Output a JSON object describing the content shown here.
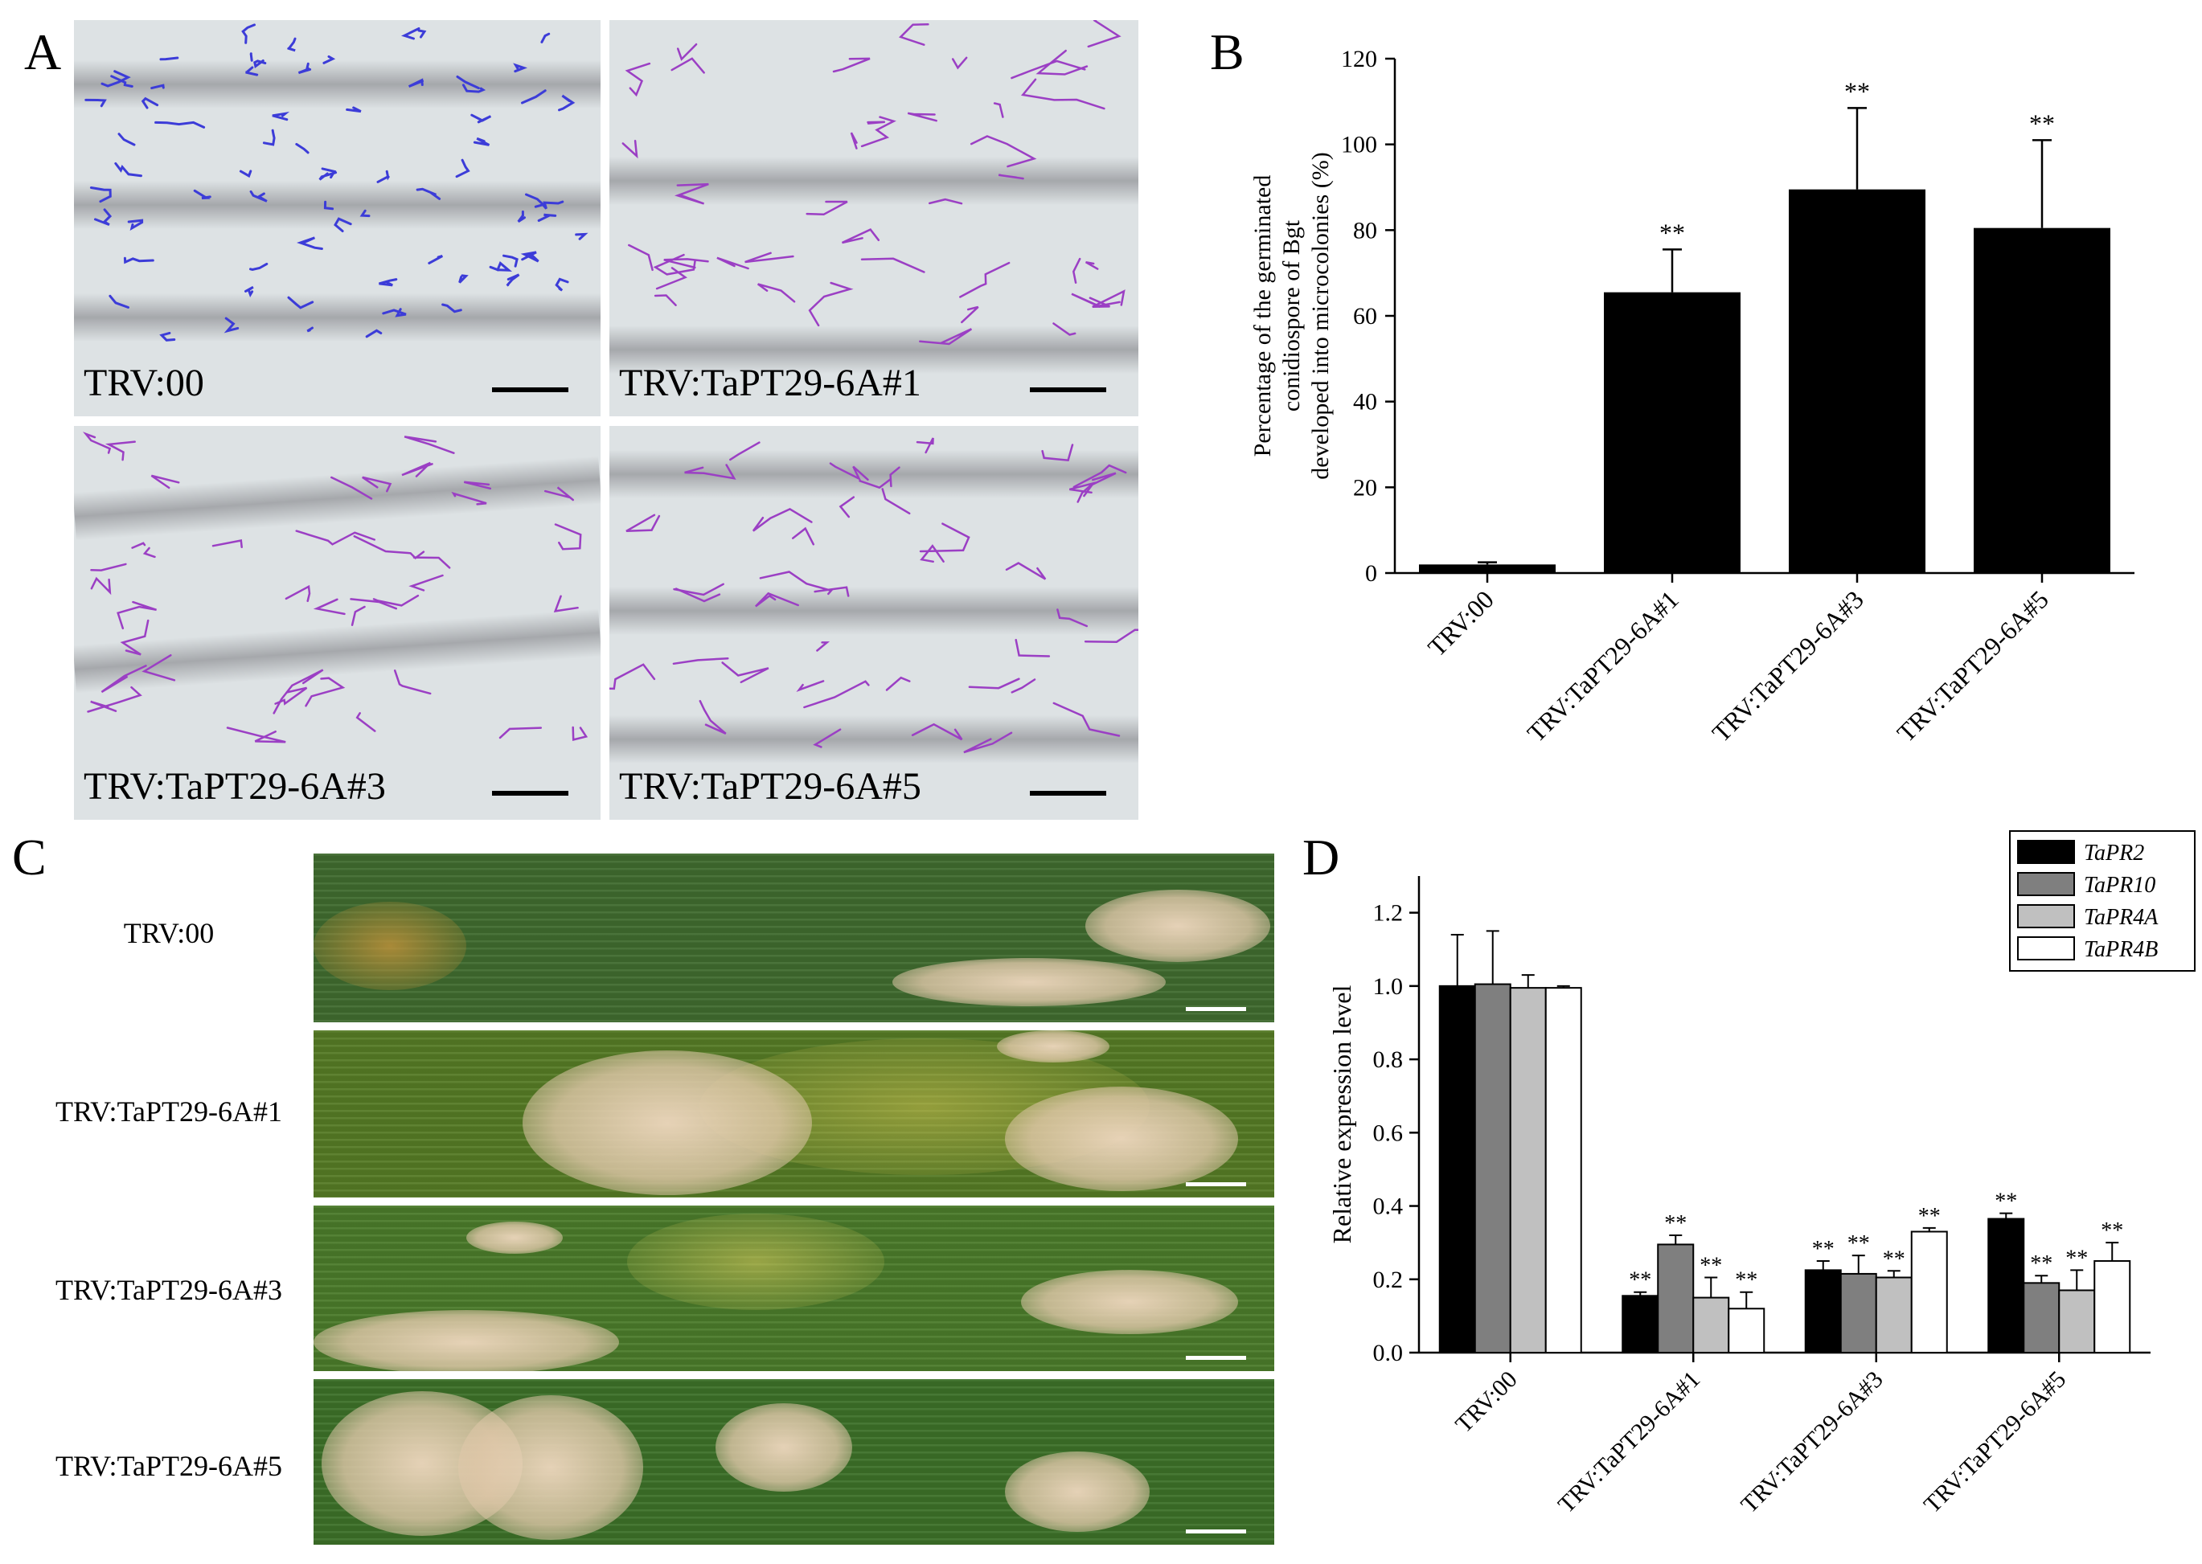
{
  "panels": {
    "a": {
      "letter": "A",
      "images": [
        {
          "caption": "TRV:00",
          "stain": "#3c3cd8"
        },
        {
          "caption": "TRV:TaPT29-6A#1",
          "stain": "#9b3fc4"
        },
        {
          "caption": "TRV:TaPT29-6A#3",
          "stain": "#9b3fc4"
        },
        {
          "caption": "TRV:TaPT29-6A#5",
          "stain": "#9b3fc4"
        }
      ]
    },
    "b": {
      "letter": "B"
    },
    "c": {
      "letter": "C",
      "leaves": [
        {
          "label": "TRV:00"
        },
        {
          "label": "TRV:TaPT29-6A#1"
        },
        {
          "label": "TRV:TaPT29-6A#3"
        },
        {
          "label": "TRV:TaPT29-6A#5"
        }
      ]
    },
    "d": {
      "letter": "D"
    }
  },
  "chart_data": [
    {
      "type": "bar",
      "panel": "B",
      "ylabel": [
        "Percentage of the germinated",
        "conidiospore of Bgt",
        "developed into microcolonies (%)"
      ],
      "categories": [
        "TRV:00",
        "TRV:TaPT29-6A#1",
        "TRV:TaPT29-6A#3",
        "TRV:TaPT29-6A#5"
      ],
      "values": [
        2,
        65.5,
        89.5,
        80.5
      ],
      "errors": [
        0.5,
        10,
        19,
        20.5
      ],
      "significance": [
        "",
        "**",
        "**",
        "**"
      ],
      "ylim": [
        0,
        120
      ],
      "yticks": [
        0,
        20,
        40,
        60,
        80,
        100,
        120
      ],
      "colors": [
        "#000000"
      ]
    },
    {
      "type": "bar",
      "panel": "D",
      "ylabel": "Relative expression level",
      "categories": [
        "TRV:00",
        "TRV:TaPT29-6A#1",
        "TRV:TaPT29-6A#3",
        "TRV:TaPT29-6A#5"
      ],
      "series": [
        {
          "name": "TaPR2",
          "color": "#000000",
          "values": [
            1.0,
            0.155,
            0.225,
            0.365
          ],
          "errors": [
            0.14,
            0.01,
            0.025,
            0.015
          ],
          "significance": [
            "",
            "**",
            "**",
            "**"
          ]
        },
        {
          "name": "TaPR10",
          "color": "#7f7f7f",
          "values": [
            1.005,
            0.295,
            0.215,
            0.19
          ],
          "errors": [
            0.145,
            0.025,
            0.05,
            0.02
          ],
          "significance": [
            "",
            "**",
            "**",
            "**"
          ]
        },
        {
          "name": "TaPR4A",
          "color": "#c0c0c0",
          "values": [
            0.995,
            0.15,
            0.205,
            0.17
          ],
          "errors": [
            0.035,
            0.055,
            0.018,
            0.055
          ],
          "significance": [
            "",
            "**",
            "**",
            "**"
          ]
        },
        {
          "name": "TaPR4B",
          "color": "#ffffff",
          "values": [
            0.995,
            0.12,
            0.33,
            0.25
          ],
          "errors": [
            0.005,
            0.045,
            0.01,
            0.05
          ],
          "significance": [
            "",
            "**",
            "**",
            "**"
          ]
        }
      ],
      "ylim": [
        0,
        1.3
      ],
      "yticks": [
        "0.0",
        "0.2",
        "0.4",
        "0.6",
        "0.8",
        "1.0",
        "1.2"
      ],
      "legend": "top-right"
    }
  ]
}
